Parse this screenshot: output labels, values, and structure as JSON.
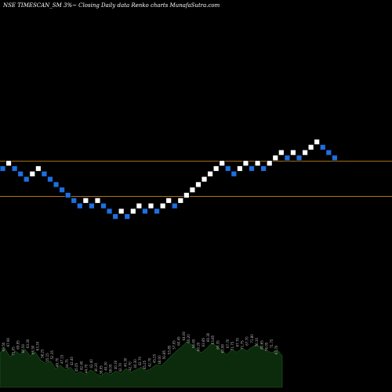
{
  "title": "NSE TIMESCAN_SM 3%~ Closing Daily data Renko charts MunafaSutra.com",
  "colors": {
    "background": "#000000",
    "up_brick": "#ffffff",
    "down_brick": "#1e6fe0",
    "reference_line": "#c8841c",
    "volume_fill": "#0c2a0c",
    "volume_stroke": "#1f5a1f"
  },
  "chart_data": {
    "type": "renko",
    "bricks": [
      {
        "dir": "down",
        "level": 0
      },
      {
        "dir": "up",
        "level": 1
      },
      {
        "dir": "down",
        "level": 0
      },
      {
        "dir": "down",
        "level": -1
      },
      {
        "dir": "down",
        "level": -2
      },
      {
        "dir": "up",
        "level": -1
      },
      {
        "dir": "up",
        "level": 0
      },
      {
        "dir": "down",
        "level": -1
      },
      {
        "dir": "down",
        "level": -2
      },
      {
        "dir": "down",
        "level": -3
      },
      {
        "dir": "down",
        "level": -4
      },
      {
        "dir": "down",
        "level": -5
      },
      {
        "dir": "down",
        "level": -6
      },
      {
        "dir": "down",
        "level": -7
      },
      {
        "dir": "up",
        "level": -6
      },
      {
        "dir": "down",
        "level": -7
      },
      {
        "dir": "up",
        "level": -6
      },
      {
        "dir": "down",
        "level": -7
      },
      {
        "dir": "down",
        "level": -8
      },
      {
        "dir": "down",
        "level": -9
      },
      {
        "dir": "up",
        "level": -8
      },
      {
        "dir": "down",
        "level": -9
      },
      {
        "dir": "up",
        "level": -8
      },
      {
        "dir": "up",
        "level": -7
      },
      {
        "dir": "down",
        "level": -8
      },
      {
        "dir": "up",
        "level": -7
      },
      {
        "dir": "down",
        "level": -8
      },
      {
        "dir": "up",
        "level": -7
      },
      {
        "dir": "up",
        "level": -6
      },
      {
        "dir": "down",
        "level": -7
      },
      {
        "dir": "up",
        "level": -6
      },
      {
        "dir": "up",
        "level": -5
      },
      {
        "dir": "up",
        "level": -4
      },
      {
        "dir": "up",
        "level": -3
      },
      {
        "dir": "up",
        "level": -2
      },
      {
        "dir": "up",
        "level": -1
      },
      {
        "dir": "up",
        "level": 0
      },
      {
        "dir": "up",
        "level": 1
      },
      {
        "dir": "down",
        "level": 0
      },
      {
        "dir": "down",
        "level": -1
      },
      {
        "dir": "up",
        "level": 0
      },
      {
        "dir": "up",
        "level": 1
      },
      {
        "dir": "down",
        "level": 0
      },
      {
        "dir": "up",
        "level": 1
      },
      {
        "dir": "down",
        "level": 0
      },
      {
        "dir": "up",
        "level": 1
      },
      {
        "dir": "up",
        "level": 2
      },
      {
        "dir": "up",
        "level": 3
      },
      {
        "dir": "down",
        "level": 2
      },
      {
        "dir": "up",
        "level": 3
      },
      {
        "dir": "down",
        "level": 2
      },
      {
        "dir": "up",
        "level": 3
      },
      {
        "dir": "up",
        "level": 4
      },
      {
        "dir": "up",
        "level": 5
      },
      {
        "dir": "down",
        "level": 4
      },
      {
        "dir": "down",
        "level": 3
      },
      {
        "dir": "down",
        "level": 2
      }
    ],
    "reference_lines": [
      1,
      -5.6
    ],
    "volume_profile": [
      0.55,
      0.62,
      0.48,
      0.58,
      0.52,
      0.6,
      0.5,
      0.56,
      0.44,
      0.38,
      0.42,
      0.3,
      0.35,
      0.28,
      0.32,
      0.22,
      0.25,
      0.2,
      0.28,
      0.22,
      0.18,
      0.24,
      0.2,
      0.26,
      0.22,
      0.3,
      0.24,
      0.28,
      0.32,
      0.26,
      0.3,
      0.36,
      0.34,
      0.42,
      0.5,
      0.58,
      0.64,
      0.72,
      0.68,
      0.6,
      0.55,
      0.62,
      0.7,
      0.66,
      0.58,
      0.52,
      0.6,
      0.56,
      0.62,
      0.58,
      0.64,
      0.68,
      0.62,
      0.58,
      0.55,
      0.6,
      0.5
    ],
    "price_labels": [
      "69.50",
      "67.90",
      "71.05",
      "69.95",
      "66.50",
      "63.30",
      "66.50",
      "63.30",
      "58.25",
      "55.15",
      "52.35",
      "49.70",
      "47.15",
      "44.75",
      "42.40",
      "45.05",
      "42.40",
      "44.70",
      "42.40",
      "40.20",
      "38.05",
      "40.30",
      "38.05",
      "40.30",
      "42.70",
      "40.30",
      "42.70",
      "40.30",
      "42.70",
      "45.25",
      "42.70",
      "45.25",
      "48.00",
      "50.85",
      "53.85",
      "57.05",
      "60.45",
      "64.00",
      "60.20",
      "56.65",
      "60.20",
      "63.85",
      "60.30",
      "63.85",
      "60.35",
      "63.90",
      "67.70",
      "71.75",
      "67.70",
      "71.75",
      "67.70",
      "71.80",
      "76.10",
      "80.65",
      "76.05",
      "71.75",
      "67.70"
    ]
  }
}
